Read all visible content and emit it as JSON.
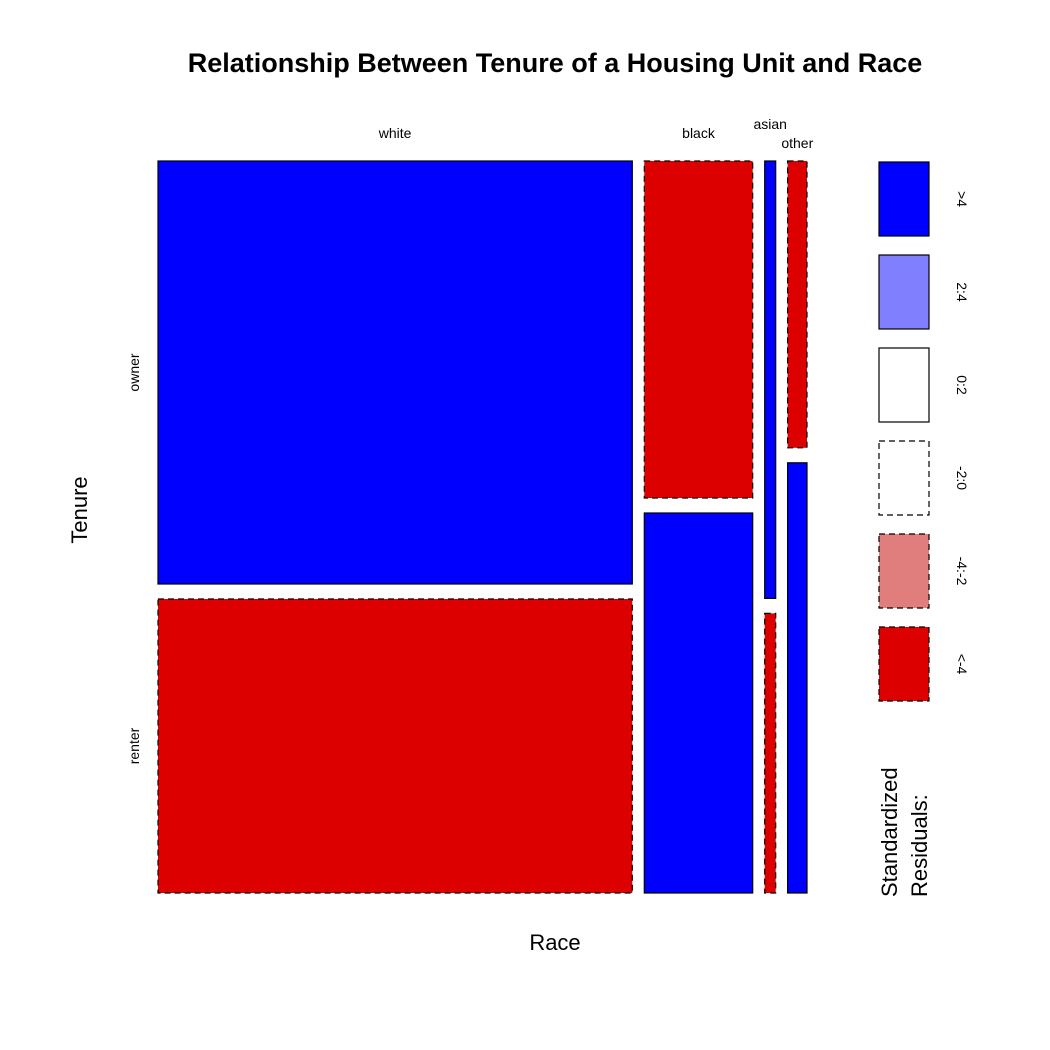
{
  "chart_data": {
    "type": "mosaic",
    "title": "Relationship Between Tenure of a Housing Unit and Race",
    "xlabel": "Race",
    "ylabel": "Tenure",
    "columns": [
      {
        "label": "white",
        "width": 0.735,
        "cells": [
          {
            "row": "owner",
            "fraction": 0.59,
            "residual_class": ">4"
          },
          {
            "row": "renter",
            "fraction": 0.41,
            "residual_class": "<-4"
          }
        ]
      },
      {
        "label": "black",
        "width": 0.168,
        "cells": [
          {
            "row": "owner",
            "fraction": 0.47,
            "residual_class": "<-4"
          },
          {
            "row": "renter",
            "fraction": 0.53,
            "residual_class": ">4"
          }
        ]
      },
      {
        "label": "asian",
        "width": 0.017,
        "cells": [
          {
            "row": "owner",
            "fraction": 0.61,
            "residual_class": ">4"
          },
          {
            "row": "renter",
            "fraction": 0.39,
            "residual_class": "<-4"
          }
        ]
      },
      {
        "label": "other",
        "width": 0.03,
        "cells": [
          {
            "row": "owner",
            "fraction": 0.4,
            "residual_class": "<-4"
          },
          {
            "row": "renter",
            "fraction": 0.6,
            "residual_class": ">4"
          }
        ]
      }
    ],
    "row_labels": [
      {
        "label": "owner"
      },
      {
        "label": "renter"
      }
    ],
    "legend": {
      "title_lines": [
        "Standardized",
        "Residuals:"
      ],
      "entries": [
        {
          "label": ">4",
          "color": "#0000ff",
          "dashed": false
        },
        {
          "label": "2:4",
          "color": "#8080ff",
          "dashed": false
        },
        {
          "label": "0:2",
          "color": "#ffffff",
          "dashed": false
        },
        {
          "label": "-2:0",
          "color": "#ffffff",
          "dashed": true
        },
        {
          "label": "-4:-2",
          "color": "#e07e7e",
          "dashed": true
        },
        {
          "label": "<-4",
          "color": "#dd0000",
          "dashed": true
        }
      ]
    }
  }
}
